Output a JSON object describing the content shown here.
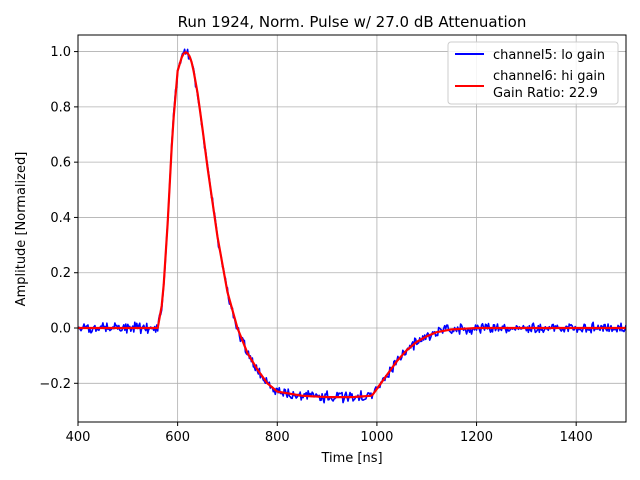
{
  "chart_data": {
    "type": "line",
    "title": "Run 1924, Norm. Pulse w/ 27.0 dB Attenuation",
    "xlabel": "Time [ns]",
    "ylabel": "Amplitude [Normalized]",
    "xlim": [
      400,
      1500
    ],
    "ylim": [
      -0.34,
      1.06
    ],
    "xticks": [
      400,
      600,
      800,
      1000,
      1200,
      1400
    ],
    "xtick_labels": [
      "400",
      "600",
      "800",
      "1000",
      "1200",
      "1400"
    ],
    "yticks": [
      -0.2,
      0.0,
      0.2,
      0.4,
      0.6,
      0.8,
      1.0
    ],
    "ytick_labels": [
      "−0.2",
      "0.0",
      "0.2",
      "0.4",
      "0.6",
      "0.8",
      "1.0"
    ],
    "grid": true,
    "legend_position": "top-right",
    "series": [
      {
        "name": "channel5: lo gain",
        "color": "#0000ff",
        "noisy": true,
        "x": [
          400,
          500,
          560,
          570,
          580,
          590,
          600,
          610,
          618,
          625,
          630,
          640,
          650,
          660,
          680,
          700,
          720,
          740,
          760,
          780,
          800,
          850,
          900,
          950,
          990,
          1000,
          1020,
          1040,
          1060,
          1080,
          1100,
          1120,
          1150,
          1200,
          1300,
          1400,
          1500
        ],
        "y": [
          0.0,
          0.0,
          0.0,
          0.1,
          0.38,
          0.72,
          0.93,
          0.99,
          1.0,
          0.98,
          0.95,
          0.85,
          0.72,
          0.58,
          0.33,
          0.13,
          0.0,
          -0.09,
          -0.15,
          -0.2,
          -0.23,
          -0.245,
          -0.25,
          -0.25,
          -0.245,
          -0.22,
          -0.17,
          -0.12,
          -0.08,
          -0.05,
          -0.03,
          -0.015,
          -0.005,
          0.0,
          0.0,
          0.0,
          0.0
        ]
      },
      {
        "name": "channel6: hi gain",
        "extra_label": "Gain Ratio: 22.9",
        "color": "#ff0000",
        "noisy": false,
        "x": [
          400,
          500,
          560,
          570,
          580,
          590,
          600,
          610,
          618,
          625,
          630,
          640,
          650,
          660,
          680,
          700,
          720,
          740,
          760,
          780,
          800,
          850,
          900,
          950,
          990,
          1000,
          1020,
          1040,
          1060,
          1080,
          1100,
          1120,
          1150,
          1200,
          1300,
          1400,
          1500
        ],
        "y": [
          0.0,
          0.0,
          0.0,
          0.1,
          0.38,
          0.72,
          0.93,
          0.99,
          1.0,
          0.98,
          0.95,
          0.85,
          0.72,
          0.58,
          0.33,
          0.13,
          0.0,
          -0.09,
          -0.15,
          -0.2,
          -0.23,
          -0.245,
          -0.25,
          -0.25,
          -0.245,
          -0.22,
          -0.17,
          -0.12,
          -0.08,
          -0.05,
          -0.03,
          -0.015,
          -0.005,
          0.0,
          0.0,
          0.0,
          0.0
        ]
      }
    ]
  }
}
